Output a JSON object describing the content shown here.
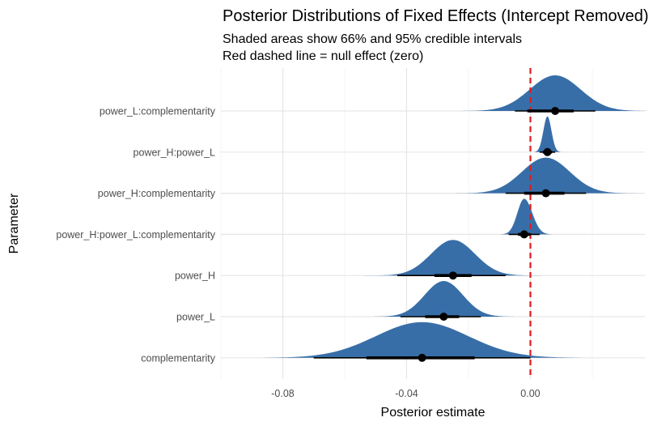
{
  "chart_data": {
    "type": "density",
    "title": "Posterior Distributions of Fixed Effects (Intercept Removed)",
    "subtitle_lines": [
      "Shaded areas show 66% and 95% credible intervals",
      "Red dashed line = null effect (zero)"
    ],
    "xlabel": "Posterior estimate",
    "ylabel": "Parameter",
    "xlim": [
      -0.1,
      0.037
    ],
    "xticks": [
      -0.08,
      -0.04,
      0.0
    ],
    "xtick_labels": [
      "-0.08",
      "-0.04",
      "0.00"
    ],
    "reference_line": {
      "x": 0,
      "style": "dashed",
      "color": "#e41a1c"
    },
    "colors": {
      "fill": "#386ea8",
      "point": "#000000",
      "ref_line": "#e41a1c"
    },
    "parameters": [
      {
        "name": "power_L:complementarity",
        "median": 0.008,
        "sd": 0.0082,
        "ci66": [
          -0.001,
          0.014
        ],
        "ci95": [
          -0.005,
          0.021
        ]
      },
      {
        "name": "power_H:power_L",
        "median": 0.0055,
        "sd": 0.0013,
        "ci66": [
          0.004,
          0.007
        ],
        "ci95": [
          0.003,
          0.008
        ]
      },
      {
        "name": "power_H:complementarity",
        "median": 0.005,
        "sd": 0.0077,
        "ci66": [
          -0.002,
          0.011
        ],
        "ci95": [
          -0.008,
          0.018
        ]
      },
      {
        "name": "power_H:power_L:complementarity",
        "median": -0.002,
        "sd": 0.0022,
        "ci66": [
          -0.004,
          0.0
        ],
        "ci95": [
          -0.007,
          0.003
        ]
      },
      {
        "name": "power_H",
        "median": -0.025,
        "sd": 0.0071,
        "ci66": [
          -0.031,
          -0.019
        ],
        "ci95": [
          -0.043,
          -0.008
        ]
      },
      {
        "name": "power_L",
        "median": -0.028,
        "sd": 0.0062,
        "ci66": [
          -0.034,
          -0.023
        ],
        "ci95": [
          -0.042,
          -0.016
        ]
      },
      {
        "name": "complementarity",
        "median": -0.035,
        "sd": 0.015,
        "ci66": [
          -0.053,
          -0.018
        ],
        "ci95": [
          -0.07,
          0.0
        ]
      }
    ]
  }
}
